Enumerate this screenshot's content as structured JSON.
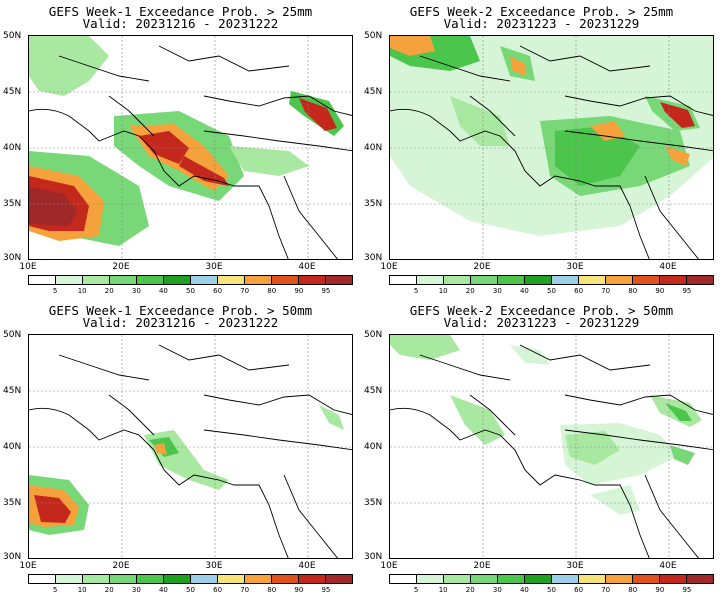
{
  "panels": [
    {
      "title_line1": "GEFS Week-1 Exceedance Prob. > 25mm",
      "title_line2": "Valid: 20231216 - 20231222",
      "map_name": "week1-25mm-map"
    },
    {
      "title_line1": "GEFS Week-2 Exceedance Prob. > 25mm",
      "title_line2": "Valid: 20231223 - 20231229",
      "map_name": "week2-25mm-map"
    },
    {
      "title_line1": "GEFS Week-1 Exceedance Prob. > 50mm",
      "title_line2": "Valid: 20231216 - 20231222",
      "map_name": "week1-50mm-map"
    },
    {
      "title_line1": "GEFS Week-2 Exceedance Prob. > 50mm",
      "title_line2": "Valid: 20231223 - 20231229",
      "map_name": "week2-50mm-map"
    }
  ],
  "lat_labels": [
    "50N",
    "45N",
    "40N",
    "35N",
    "30N"
  ],
  "lon_labels": [
    "10E",
    "20E",
    "30E",
    "40E"
  ],
  "colorbar_labels": [
    "5",
    "10",
    "20",
    "30",
    "40",
    "50",
    "60",
    "70",
    "80",
    "90",
    "95"
  ],
  "colorbar_colors": [
    "#ffffff",
    "#d6f5d6",
    "#a8e8a0",
    "#78d878",
    "#4cc54c",
    "#1fa01f",
    "#9ccfe8",
    "#f6e37a",
    "#f6a23c",
    "#e0521c",
    "#c4281c",
    "#a02828"
  ]
}
